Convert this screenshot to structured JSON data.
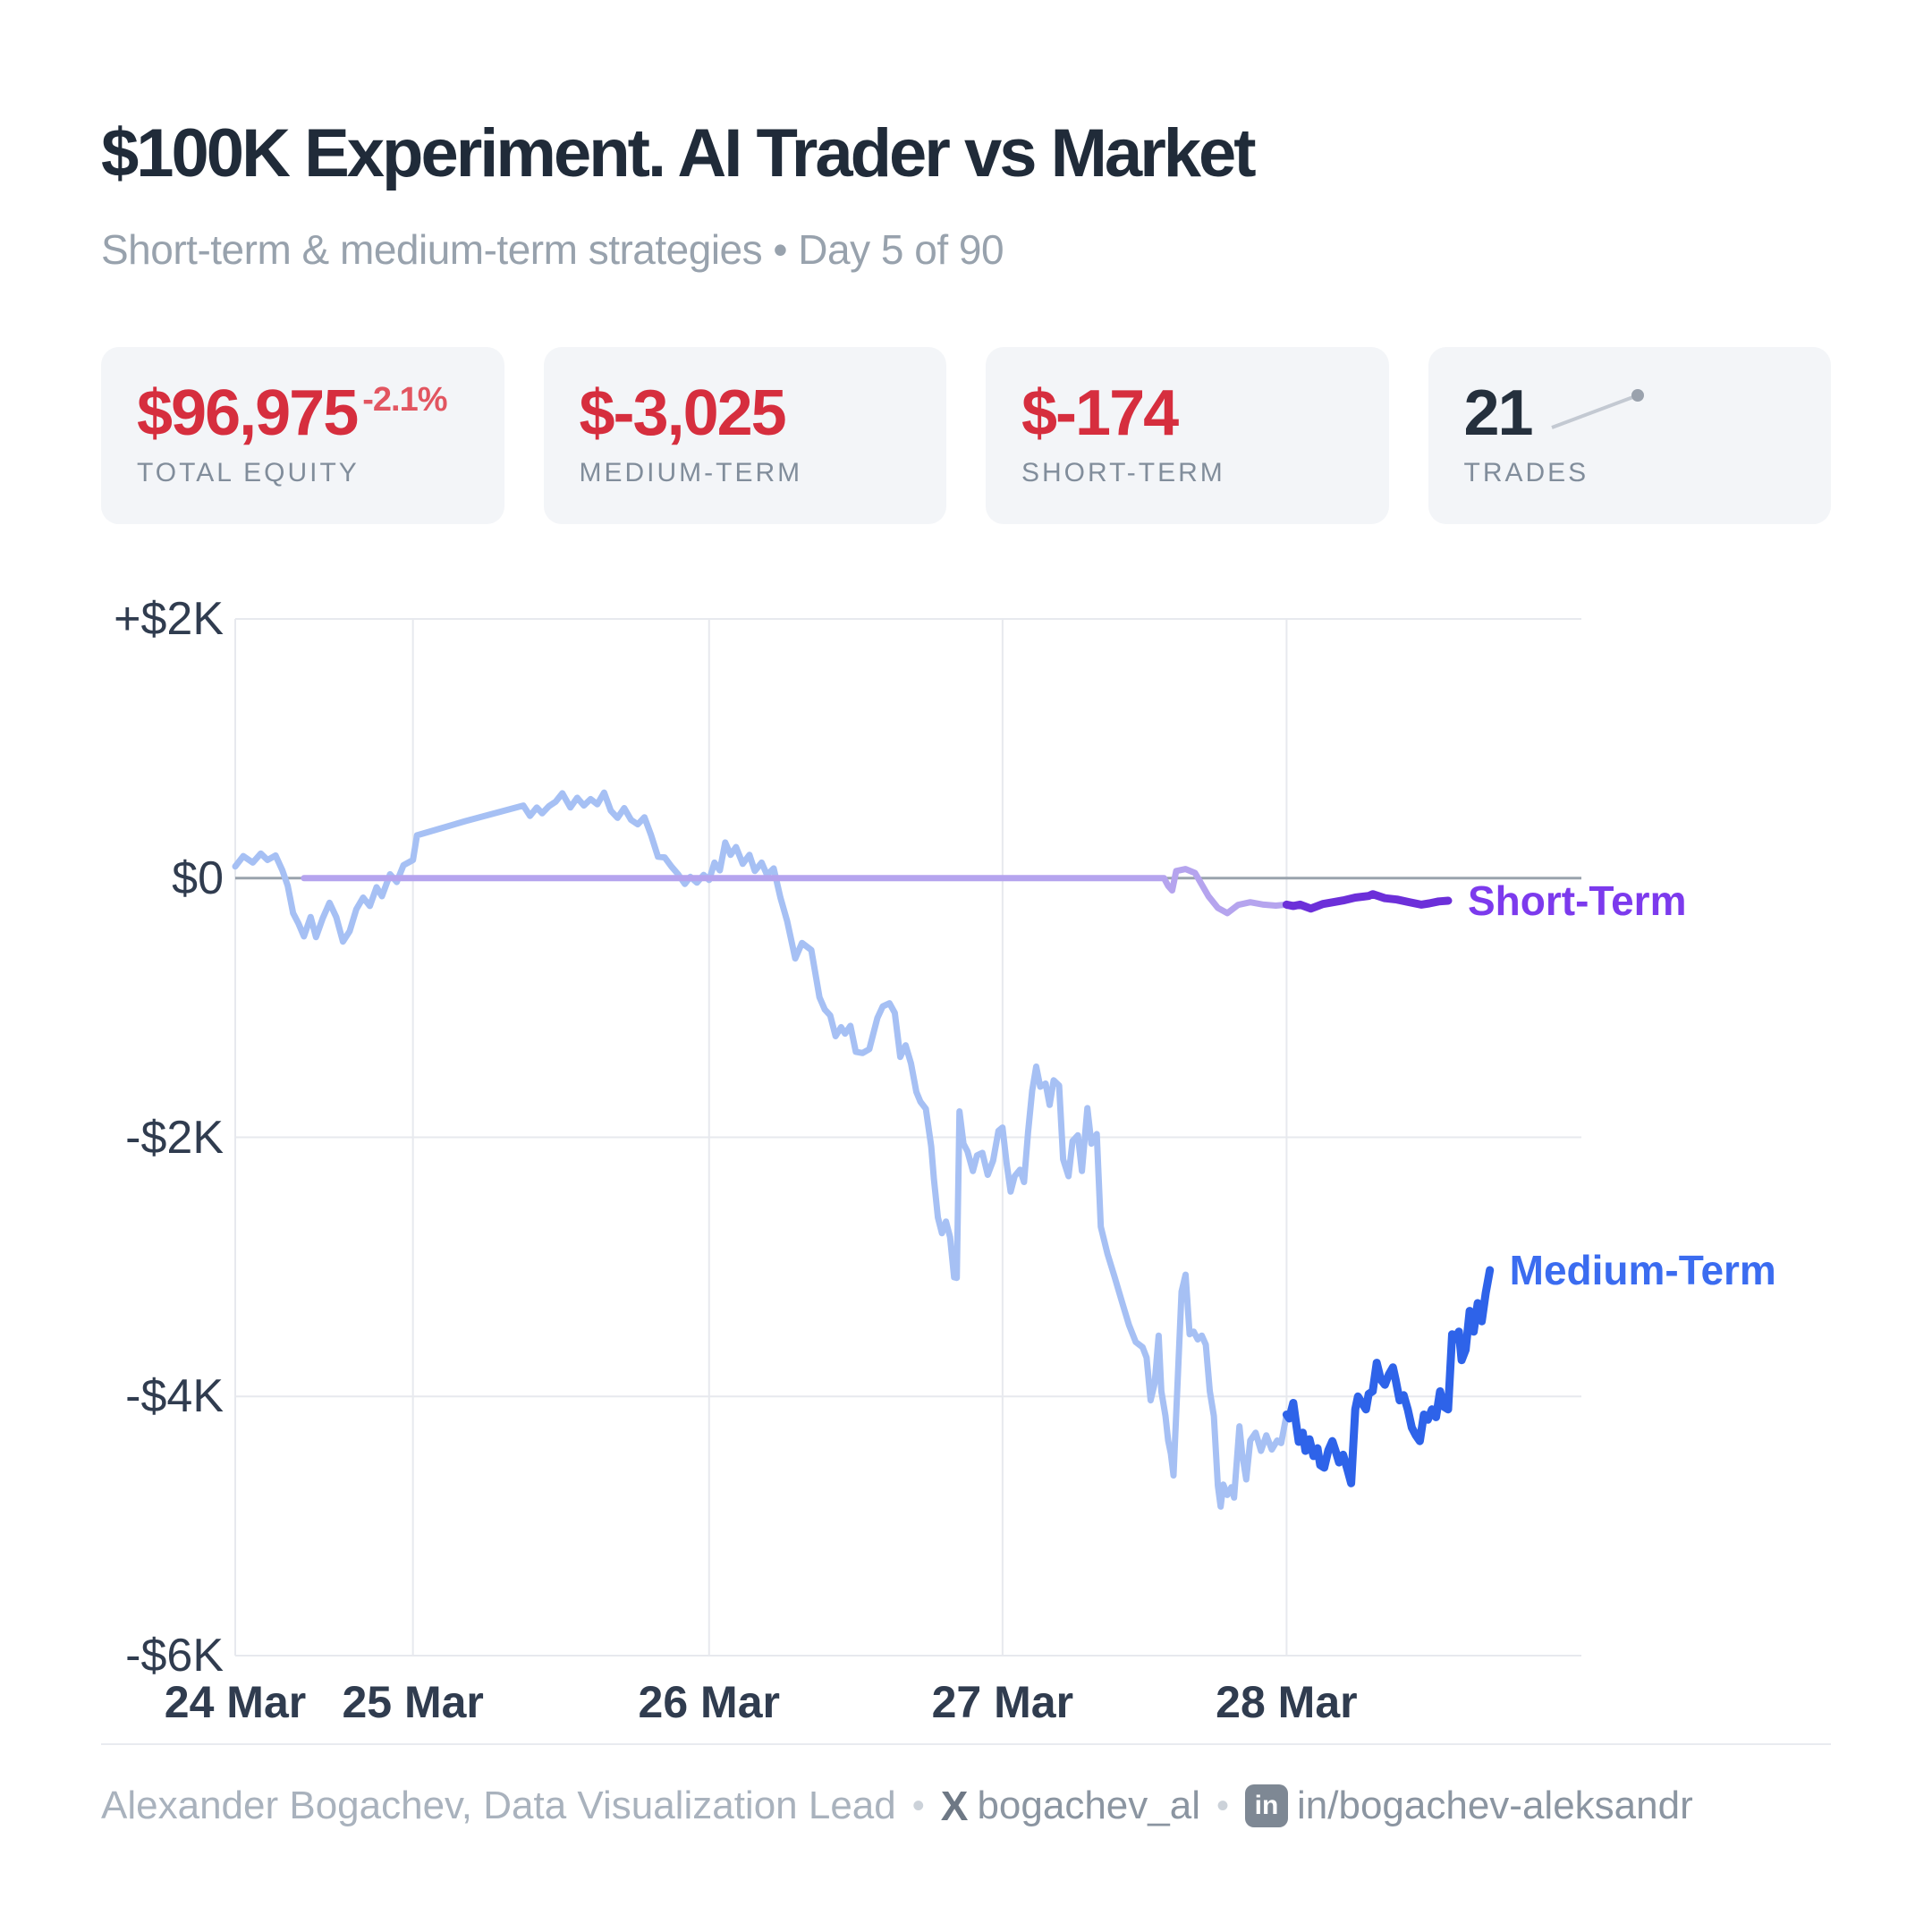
{
  "header": {
    "title": "$100K Experiment. AI Trader vs Market",
    "subtitle": "Short-term & medium-term strategies • Day 5 of 90"
  },
  "cards": [
    {
      "value": "$96,975",
      "delta": "-2.1%",
      "label": "TOTAL EQUITY"
    },
    {
      "value": "$-3,025",
      "label": "MEDIUM-TERM"
    },
    {
      "value": "$-174",
      "label": "SHORT-TERM"
    },
    {
      "value": "21",
      "label": "TRADES"
    }
  ],
  "chart_data": {
    "type": "line",
    "title": "",
    "xlabel": "",
    "ylabel": "",
    "grid": true,
    "ylim": [
      -6000,
      2000
    ],
    "y_ticks": [
      {
        "label": "+$2K",
        "value": 2000
      },
      {
        "label": "$0",
        "value": 0
      },
      {
        "label": "-$2K",
        "value": -2000
      },
      {
        "label": "-$4K",
        "value": -4000
      },
      {
        "label": "-$6K",
        "value": -6000
      }
    ],
    "x_ticks": [
      {
        "label": "24 Mar",
        "f": 0.0
      },
      {
        "label": "25 Mar",
        "f": 0.132
      },
      {
        "label": "26 Mar",
        "f": 0.352
      },
      {
        "label": "27 Mar",
        "f": 0.57
      },
      {
        "label": "28 Mar",
        "f": 0.781
      }
    ],
    "split_f": 0.781,
    "zero_line_color": "#9aa3ad",
    "grid_color": "#e7e9ee",
    "series": [
      {
        "name": "Medium-Term",
        "color_past": "#a6c0f4",
        "color_current": "#2e63e9",
        "label_color": "#3b6cf0",
        "points": [
          [
            0.0,
            90
          ],
          [
            0.006,
            170
          ],
          [
            0.013,
            120
          ],
          [
            0.019,
            190
          ],
          [
            0.024,
            140
          ],
          [
            0.03,
            175
          ],
          [
            0.035,
            60
          ],
          [
            0.039,
            -60
          ],
          [
            0.043,
            -270
          ],
          [
            0.047,
            -350
          ],
          [
            0.051,
            -450
          ],
          [
            0.056,
            -300
          ],
          [
            0.06,
            -455
          ],
          [
            0.065,
            -310
          ],
          [
            0.07,
            -190
          ],
          [
            0.075,
            -300
          ],
          [
            0.08,
            -490
          ],
          [
            0.085,
            -410
          ],
          [
            0.09,
            -240
          ],
          [
            0.095,
            -150
          ],
          [
            0.1,
            -215
          ],
          [
            0.105,
            -70
          ],
          [
            0.109,
            -140
          ],
          [
            0.115,
            30
          ],
          [
            0.12,
            -30
          ],
          [
            0.125,
            100
          ],
          [
            0.132,
            140
          ],
          [
            0.135,
            330
          ],
          [
            0.171,
            440
          ],
          [
            0.214,
            560
          ],
          [
            0.219,
            480
          ],
          [
            0.224,
            545
          ],
          [
            0.228,
            500
          ],
          [
            0.233,
            555
          ],
          [
            0.238,
            590
          ],
          [
            0.243,
            655
          ],
          [
            0.249,
            545
          ],
          [
            0.254,
            620
          ],
          [
            0.259,
            560
          ],
          [
            0.264,
            610
          ],
          [
            0.269,
            570
          ],
          [
            0.274,
            660
          ],
          [
            0.279,
            520
          ],
          [
            0.284,
            465
          ],
          [
            0.289,
            540
          ],
          [
            0.294,
            450
          ],
          [
            0.299,
            415
          ],
          [
            0.304,
            470
          ],
          [
            0.309,
            330
          ],
          [
            0.314,
            165
          ],
          [
            0.319,
            160
          ],
          [
            0.324,
            90
          ],
          [
            0.329,
            30
          ],
          [
            0.334,
            -45
          ],
          [
            0.338,
            10
          ],
          [
            0.343,
            -35
          ],
          [
            0.348,
            25
          ],
          [
            0.352,
            -15
          ],
          [
            0.356,
            120
          ],
          [
            0.36,
            60
          ],
          [
            0.364,
            275
          ],
          [
            0.368,
            180
          ],
          [
            0.372,
            240
          ],
          [
            0.377,
            110
          ],
          [
            0.382,
            180
          ],
          [
            0.386,
            55
          ],
          [
            0.391,
            120
          ],
          [
            0.395,
            25
          ],
          [
            0.4,
            75
          ],
          [
            0.405,
            -150
          ],
          [
            0.41,
            -330
          ],
          [
            0.416,
            -620
          ],
          [
            0.421,
            -500
          ],
          [
            0.428,
            -555
          ],
          [
            0.434,
            -920
          ],
          [
            0.438,
            -1015
          ],
          [
            0.442,
            -1060
          ],
          [
            0.446,
            -1220
          ],
          [
            0.45,
            -1150
          ],
          [
            0.453,
            -1200
          ],
          [
            0.457,
            -1140
          ],
          [
            0.461,
            -1340
          ],
          [
            0.466,
            -1350
          ],
          [
            0.471,
            -1320
          ],
          [
            0.477,
            -1080
          ],
          [
            0.481,
            -990
          ],
          [
            0.486,
            -965
          ],
          [
            0.49,
            -1040
          ],
          [
            0.494,
            -1380
          ],
          [
            0.498,
            -1290
          ],
          [
            0.502,
            -1430
          ],
          [
            0.506,
            -1650
          ],
          [
            0.509,
            -1725
          ],
          [
            0.513,
            -1780
          ],
          [
            0.517,
            -2070
          ],
          [
            0.519,
            -2320
          ],
          [
            0.522,
            -2620
          ],
          [
            0.525,
            -2740
          ],
          [
            0.528,
            -2650
          ],
          [
            0.531,
            -2770
          ],
          [
            0.534,
            -3080
          ],
          [
            0.536,
            -3085
          ],
          [
            0.538,
            -1800
          ],
          [
            0.541,
            -2050
          ],
          [
            0.544,
            -2110
          ],
          [
            0.548,
            -2260
          ],
          [
            0.551,
            -2140
          ],
          [
            0.555,
            -2120
          ],
          [
            0.559,
            -2290
          ],
          [
            0.563,
            -2180
          ],
          [
            0.567,
            -1950
          ],
          [
            0.57,
            -1925
          ],
          [
            0.573,
            -2200
          ],
          [
            0.576,
            -2420
          ],
          [
            0.579,
            -2300
          ],
          [
            0.583,
            -2250
          ],
          [
            0.586,
            -2345
          ],
          [
            0.589,
            -1960
          ],
          [
            0.592,
            -1640
          ],
          [
            0.595,
            -1455
          ],
          [
            0.598,
            -1610
          ],
          [
            0.602,
            -1585
          ],
          [
            0.605,
            -1750
          ],
          [
            0.608,
            -1560
          ],
          [
            0.612,
            -1600
          ],
          [
            0.615,
            -2170
          ],
          [
            0.619,
            -2300
          ],
          [
            0.622,
            -2030
          ],
          [
            0.626,
            -1985
          ],
          [
            0.629,
            -2260
          ],
          [
            0.633,
            -1775
          ],
          [
            0.636,
            -2050
          ],
          [
            0.64,
            -1975
          ],
          [
            0.643,
            -2690
          ],
          [
            0.648,
            -2900
          ],
          [
            0.653,
            -3070
          ],
          [
            0.659,
            -3280
          ],
          [
            0.664,
            -3450
          ],
          [
            0.669,
            -3580
          ],
          [
            0.674,
            -3620
          ],
          [
            0.677,
            -3700
          ],
          [
            0.68,
            -4030
          ],
          [
            0.683,
            -3900
          ],
          [
            0.686,
            -3530
          ],
          [
            0.688,
            -3960
          ],
          [
            0.691,
            -4150
          ],
          [
            0.693,
            -4340
          ],
          [
            0.695,
            -4440
          ],
          [
            0.697,
            -4610
          ],
          [
            0.7,
            -3900
          ],
          [
            0.703,
            -3190
          ],
          [
            0.706,
            -3060
          ],
          [
            0.709,
            -3520
          ],
          [
            0.712,
            -3500
          ],
          [
            0.715,
            -3560
          ],
          [
            0.718,
            -3530
          ],
          [
            0.721,
            -3600
          ],
          [
            0.724,
            -3960
          ],
          [
            0.727,
            -4150
          ],
          [
            0.73,
            -4690
          ],
          [
            0.732,
            -4850
          ],
          [
            0.734,
            -4680
          ],
          [
            0.737,
            -4760
          ],
          [
            0.74,
            -4700
          ],
          [
            0.742,
            -4780
          ],
          [
            0.746,
            -4230
          ],
          [
            0.748,
            -4440
          ],
          [
            0.751,
            -4640
          ],
          [
            0.754,
            -4340
          ],
          [
            0.758,
            -4280
          ],
          [
            0.762,
            -4420
          ],
          [
            0.766,
            -4300
          ],
          [
            0.77,
            -4410
          ],
          [
            0.774,
            -4340
          ],
          [
            0.777,
            -4360
          ],
          [
            0.781,
            -4140
          ],
          [
            0.783,
            -4170
          ],
          [
            0.786,
            -4050
          ],
          [
            0.788,
            -4200
          ],
          [
            0.79,
            -4350
          ],
          [
            0.793,
            -4280
          ],
          [
            0.795,
            -4420
          ],
          [
            0.798,
            -4330
          ],
          [
            0.801,
            -4460
          ],
          [
            0.804,
            -4400
          ],
          [
            0.806,
            -4530
          ],
          [
            0.809,
            -4550
          ],
          [
            0.812,
            -4415
          ],
          [
            0.815,
            -4345
          ],
          [
            0.818,
            -4440
          ],
          [
            0.82,
            -4510
          ],
          [
            0.823,
            -4450
          ],
          [
            0.826,
            -4555
          ],
          [
            0.829,
            -4670
          ],
          [
            0.832,
            -4100
          ],
          [
            0.834,
            -4000
          ],
          [
            0.837,
            -4050
          ],
          [
            0.84,
            -4100
          ],
          [
            0.842,
            -3980
          ],
          [
            0.845,
            -3960
          ],
          [
            0.848,
            -3740
          ],
          [
            0.851,
            -3870
          ],
          [
            0.854,
            -3910
          ],
          [
            0.857,
            -3830
          ],
          [
            0.86,
            -3775
          ],
          [
            0.862,
            -3870
          ],
          [
            0.865,
            -4030
          ],
          [
            0.868,
            -3990
          ],
          [
            0.871,
            -4100
          ],
          [
            0.874,
            -4240
          ],
          [
            0.877,
            -4300
          ],
          [
            0.88,
            -4345
          ],
          [
            0.883,
            -4140
          ],
          [
            0.886,
            -4180
          ],
          [
            0.889,
            -4100
          ],
          [
            0.892,
            -4160
          ],
          [
            0.895,
            -3960
          ],
          [
            0.898,
            -4080
          ],
          [
            0.901,
            -4100
          ],
          [
            0.904,
            -3520
          ],
          [
            0.906,
            -3560
          ],
          [
            0.909,
            -3500
          ],
          [
            0.911,
            -3720
          ],
          [
            0.914,
            -3640
          ],
          [
            0.917,
            -3340
          ],
          [
            0.92,
            -3500
          ],
          [
            0.923,
            -3280
          ],
          [
            0.926,
            -3420
          ],
          [
            0.929,
            -3200
          ],
          [
            0.932,
            -3025
          ]
        ]
      },
      {
        "name": "Short-Term",
        "color_past": "#b5a4ee",
        "color_current": "#6c2fd9",
        "label_color": "#7c3aed",
        "points": [
          [
            0.051,
            0
          ],
          [
            0.69,
            0
          ],
          [
            0.693,
            -60
          ],
          [
            0.696,
            -95
          ],
          [
            0.699,
            55
          ],
          [
            0.706,
            70
          ],
          [
            0.713,
            40
          ],
          [
            0.723,
            -140
          ],
          [
            0.73,
            -230
          ],
          [
            0.737,
            -270
          ],
          [
            0.745,
            -207
          ],
          [
            0.754,
            -186
          ],
          [
            0.764,
            -205
          ],
          [
            0.773,
            -212
          ],
          [
            0.781,
            -205
          ],
          [
            0.786,
            -215
          ],
          [
            0.791,
            -205
          ],
          [
            0.799,
            -235
          ],
          [
            0.808,
            -200
          ],
          [
            0.816,
            -185
          ],
          [
            0.823,
            -172
          ],
          [
            0.832,
            -150
          ],
          [
            0.842,
            -138
          ],
          [
            0.845,
            -124
          ],
          [
            0.854,
            -155
          ],
          [
            0.863,
            -165
          ],
          [
            0.872,
            -185
          ],
          [
            0.881,
            -205
          ],
          [
            0.887,
            -195
          ],
          [
            0.894,
            -180
          ],
          [
            0.901,
            -174
          ]
        ]
      }
    ]
  },
  "footer": {
    "author": "Alexander Bogachev, Data Visualization Lead",
    "separator": "•",
    "x_logo": "X",
    "x_handle": "bogachev_al",
    "linkedin_badge": "in",
    "linkedin": "in/bogachev-aleksandr"
  }
}
